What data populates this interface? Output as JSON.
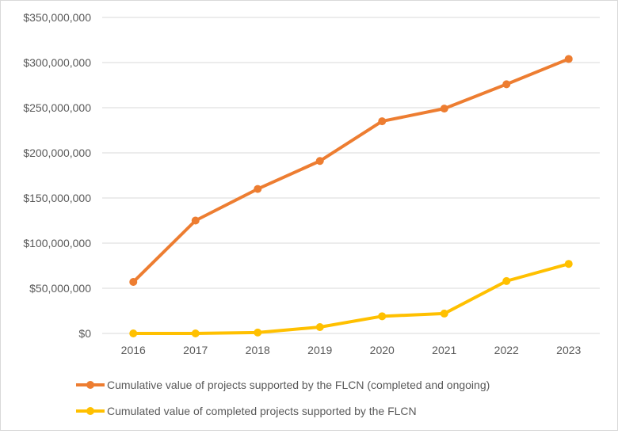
{
  "chart_data": {
    "type": "line",
    "title": "",
    "xlabel": "",
    "ylabel": "",
    "categories": [
      "2016",
      "2017",
      "2018",
      "2019",
      "2020",
      "2021",
      "2022",
      "2023"
    ],
    "ylim": [
      0,
      350000000
    ],
    "yticks": [
      0,
      50000000,
      100000000,
      150000000,
      200000000,
      250000000,
      300000000,
      350000000
    ],
    "ytick_labels": [
      "$0",
      "$50,000,000",
      "$100,000,000",
      "$150,000,000",
      "$200,000,000",
      "$250,000,000",
      "$300,000,000",
      "$350,000,000"
    ],
    "grid": true,
    "legend_position": "bottom",
    "series": [
      {
        "name": "Cumulative value of projects supported by the FLCN (completed and ongoing)",
        "color": "#ED7D31",
        "values": [
          57000000,
          125000000,
          160000000,
          191000000,
          235000000,
          249000000,
          276000000,
          304000000
        ]
      },
      {
        "name": "Cumulated value of completed projects supported by the FLCN",
        "color": "#FFC000",
        "values": [
          0,
          0,
          1000000,
          7000000,
          19000000,
          22000000,
          58000000,
          77000000
        ]
      }
    ]
  }
}
